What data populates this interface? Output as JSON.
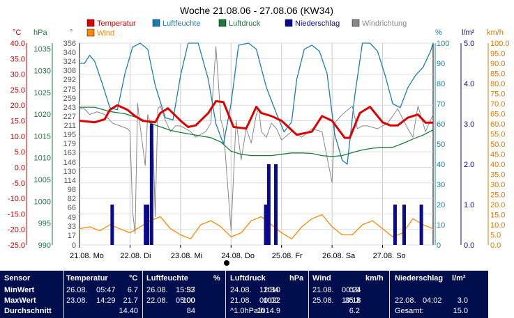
{
  "chart_data": {
    "type": "line",
    "title": "Woche 21.08.06 - 27.08.06 (KW34)",
    "legend": [
      {
        "name": "Temperatur",
        "color": "#dd0000"
      },
      {
        "name": "Luftfeuchte",
        "color": "#1a7fb0"
      },
      {
        "name": "Luftdruck",
        "color": "#1a7a3a"
      },
      {
        "name": "Niederschlag",
        "color": "#0a0a90"
      },
      {
        "name": "Windrichtung",
        "color": "#888888"
      },
      {
        "name": "Wind",
        "color": "#ff8800"
      }
    ],
    "axes": {
      "temp": {
        "unit": "°C",
        "color": "#cc0000",
        "ticks": [
          "40.0",
          "35.0",
          "30.0",
          "25.0",
          "20.0",
          "15.0",
          "10.0",
          "5.0",
          "0.0",
          "-5.0",
          "-10.0",
          "-15.0",
          "-20.0",
          "-25.0"
        ],
        "range": [
          -25,
          40
        ]
      },
      "pressure": {
        "unit": "hPa",
        "color": "#1a7a3a",
        "ticks": [
          "1035",
          "1030",
          "1025",
          "1020",
          "1015",
          "1010",
          "1005",
          "1000",
          "995",
          "990"
        ],
        "range": [
          990,
          1036.3
        ]
      },
      "direction": {
        "unit": "°",
        "color": "#555555",
        "ticks": [
          "356",
          "340",
          "324",
          "308",
          "292",
          "275",
          "259",
          "243",
          "227",
          "211",
          "195",
          "179",
          "163",
          "146",
          "130",
          "114",
          "98",
          "82",
          "66",
          "49",
          "33",
          "17",
          "0"
        ],
        "range": [
          0,
          356
        ]
      },
      "humidity": {
        "unit": "%",
        "color": "#1a7fb0",
        "ticks": [
          "100",
          "90",
          "80",
          "70",
          "60",
          "50",
          "40",
          "30",
          "20",
          "10",
          "0"
        ],
        "range": [
          0,
          100
        ]
      },
      "rain": {
        "unit": "l/m²",
        "color": "#0a0a90",
        "ticks": [
          "5.0",
          "4.0",
          "3.0",
          "2.0",
          "1.0",
          "0.0"
        ],
        "range": [
          0,
          5
        ]
      },
      "wind": {
        "unit": "km/h",
        "color": "#dd7700",
        "ticks": [
          "100.0",
          "95.0",
          "90.0",
          "85.0",
          "80.0",
          "75.0",
          "70.0",
          "65.0",
          "60.0",
          "55.0",
          "50.0",
          "45.0",
          "40.0",
          "35.0",
          "30.0",
          "25.0",
          "20.0",
          "15.0",
          "10.0",
          "5.0",
          "0.0"
        ],
        "range": [
          0,
          100
        ]
      }
    },
    "x_labels": [
      "21.08. Mo",
      "22.08. Di",
      "23.08. Mi",
      "24.08. Do",
      "25.08. Fr",
      "26.08. Sa",
      "27.08. So"
    ],
    "x_range_days": [
      0,
      7
    ],
    "series": [
      {
        "name": "Temperatur",
        "axis": "temp",
        "x": [
          0,
          0.3,
          0.5,
          0.6,
          0.75,
          0.95,
          1.1,
          1.25,
          1.5,
          1.6,
          1.75,
          2.0,
          2.15,
          2.3,
          2.55,
          2.7,
          2.85,
          3.05,
          3.3,
          3.5,
          3.6,
          3.8,
          4.0,
          4.3,
          4.6,
          4.8,
          5.0,
          5.25,
          5.35,
          5.55,
          5.75,
          6.0,
          6.15,
          6.3,
          6.5,
          6.7,
          6.85,
          7.0
        ],
        "y": [
          15,
          14.5,
          15.5,
          18.5,
          20,
          18.5,
          16.5,
          15,
          14.5,
          17.5,
          19,
          15,
          13,
          13.5,
          17.5,
          21.3,
          21,
          13,
          12.5,
          19.5,
          17.5,
          16.5,
          15,
          10.5,
          11.5,
          16.5,
          15,
          9.5,
          9.5,
          17.5,
          19.5,
          14.5,
          13.5,
          13.5,
          16,
          17,
          14.4,
          14.4
        ]
      },
      {
        "name": "Luftfeuchte",
        "axis": "humidity",
        "x": [
          0,
          0.1,
          0.2,
          0.3,
          0.45,
          0.6,
          0.75,
          0.9,
          1.05,
          1.2,
          1.35,
          1.5,
          1.7,
          1.85,
          2.0,
          2.15,
          2.35,
          2.55,
          2.7,
          2.85,
          3.0,
          3.15,
          3.35,
          3.5,
          3.7,
          3.9,
          4.05,
          4.2,
          4.3,
          4.45,
          4.6,
          4.75,
          4.9,
          5.05,
          5.2,
          5.3,
          5.45,
          5.6,
          5.75,
          5.9,
          6.05,
          6.2,
          6.35,
          6.5,
          6.65,
          6.8,
          6.95,
          7.0
        ],
        "y": [
          90,
          90,
          94,
          91,
          80,
          68,
          67,
          85,
          98,
          100,
          97,
          79,
          63,
          62,
          84,
          100,
          100,
          82,
          60,
          50,
          70,
          99,
          100,
          97,
          78,
          65,
          56,
          61,
          82,
          97,
          99,
          96,
          85,
          55,
          42,
          40,
          74,
          100,
          100,
          96,
          84,
          70,
          68,
          78,
          84,
          88,
          96,
          100
        ]
      },
      {
        "name": "Luftdruck",
        "axis": "pressure",
        "x": [
          0,
          0.3,
          0.6,
          0.9,
          1.2,
          1.5,
          1.8,
          2.0,
          2.2,
          2.4,
          2.6,
          2.8,
          3.0,
          3.2,
          3.4,
          3.6,
          3.8,
          4.0,
          4.2,
          4.4,
          4.6,
          4.8,
          5.0,
          5.2,
          5.4,
          5.6,
          5.8,
          6.0,
          6.2,
          6.4,
          6.6,
          6.8,
          7.0
        ],
        "y": [
          1021.6,
          1021.6,
          1020.6,
          1020.1,
          1019,
          1017.5,
          1016.3,
          1015.8,
          1015.4,
          1015,
          1014.6,
          1013.6,
          1011.5,
          1010.8,
          1010.5,
          1010.5,
          1010.5,
          1010.8,
          1011.1,
          1011.1,
          1011,
          1010.5,
          1010.3,
          1010.5,
          1011.2,
          1011.8,
          1012.2,
          1012.4,
          1012.4,
          1013.3,
          1014.3,
          1015.2,
          1016.4
        ]
      },
      {
        "name": "Niederschlag",
        "axis": "rain",
        "type": "bar",
        "x": [
          0.64,
          1.3,
          1.34,
          1.42,
          3.68,
          3.74,
          3.88,
          6.24,
          6.42,
          6.76
        ],
        "y": [
          1,
          1,
          1,
          3,
          1,
          2,
          2,
          1,
          1,
          1
        ]
      },
      {
        "name": "Windrichtung",
        "axis": "direction",
        "x": [
          0,
          0.1,
          0.2,
          0.35,
          0.5,
          0.65,
          0.8,
          0.95,
          1.0,
          1.05,
          1.1,
          1.15,
          1.2,
          1.3,
          1.35,
          1.45,
          1.5,
          1.55,
          1.6,
          1.7,
          1.8,
          1.9,
          2.0,
          2.2,
          2.3,
          2.5,
          2.6,
          2.7,
          2.8,
          2.85,
          3.0,
          3.1,
          3.2,
          3.3,
          3.4,
          3.5,
          3.55,
          3.6,
          3.7,
          3.8,
          3.9,
          4.0,
          4.2,
          4.4,
          4.6,
          4.8,
          5.0,
          5.05,
          5.2,
          5.4,
          5.5,
          5.6,
          5.7,
          5.9,
          6.1,
          6.3,
          6.5,
          6.6,
          6.7,
          6.85,
          7.0
        ],
        "y": [
          240,
          240,
          230,
          235,
          230,
          215,
          210,
          205,
          200,
          60,
          20,
          250,
          210,
          140,
          230,
          200,
          50,
          240,
          245,
          220,
          200,
          210,
          210,
          200,
          190,
          200,
          215,
          350,
          220,
          205,
          25,
          220,
          150,
          205,
          180,
          230,
          240,
          200,
          190,
          215,
          205,
          185,
          200,
          190,
          205,
          200,
          110,
          215,
          230,
          245,
          205,
          210,
          210,
          205,
          215,
          240,
          205,
          190,
          245,
          200,
          230
        ]
      },
      {
        "name": "Wind",
        "axis": "wind",
        "x": [
          0,
          0.2,
          0.4,
          0.6,
          0.8,
          1.0,
          1.2,
          1.4,
          1.6,
          1.8,
          2.0,
          2.2,
          2.4,
          2.6,
          2.8,
          3.0,
          3.2,
          3.4,
          3.6,
          3.8,
          4.0,
          4.2,
          4.4,
          4.6,
          4.8,
          5.0,
          5.2,
          5.4,
          5.6,
          5.8,
          6.0,
          6.2,
          6.4,
          6.6,
          6.8,
          7.0
        ],
        "y": [
          8,
          9,
          7,
          10,
          8,
          6,
          9,
          12,
          14,
          8,
          5,
          3,
          10,
          12,
          9,
          4,
          6,
          12,
          14,
          10,
          6,
          3,
          9,
          13,
          15,
          9,
          5,
          5,
          10,
          12,
          8,
          4,
          6,
          13,
          10,
          8
        ]
      }
    ]
  },
  "stats": {
    "sensor": {
      "header": "Sensor",
      "rows": [
        "MinWert",
        "MaxWert",
        "Durchschnitt"
      ]
    },
    "temperatur": {
      "header": "Temperatur",
      "unit": "°C",
      "min": {
        "date": "26.08.",
        "time": "05:47",
        "value": "6.7"
      },
      "max": {
        "date": "23.08.",
        "time": "14:29",
        "value": "21.7"
      },
      "avg": "14.40"
    },
    "luftfeuchte": {
      "header": "Luftfeuchte",
      "unit": "%",
      "min": {
        "date": "26.08.",
        "time": "15:53",
        "value": "37"
      },
      "max": {
        "date": "22.08.",
        "time": "05:00",
        "value": "100"
      },
      "avg": "84"
    },
    "luftdruck": {
      "header": "Luftdruck",
      "unit": "hPa",
      "min": {
        "date": "24.08.",
        "time": "12:34",
        "value": "1010"
      },
      "max": {
        "date": "21.08.",
        "time": "00:00",
        "value": "1022"
      },
      "avg_label": "^1.0hPa/h",
      "avg": "1014.9"
    },
    "wind": {
      "header": "Wind",
      "unit": "km/h",
      "min": {
        "date": "21.08.",
        "time": "00:24",
        "value": "0.0"
      },
      "max": {
        "date": "25.08.",
        "time": "10:18",
        "value": "35.3"
      },
      "avg": "6.2"
    },
    "niederschlag": {
      "header": "Niederschlag",
      "unit": "l/m²",
      "max": {
        "date": "22.08.",
        "time": "04:02",
        "value": "3.0"
      },
      "total_label": "Gesamt:",
      "total": "15.0"
    }
  }
}
